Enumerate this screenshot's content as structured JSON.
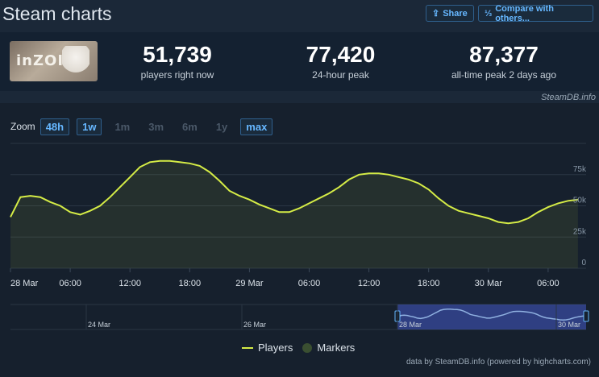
{
  "header": {
    "title": "Steam charts",
    "share_label": "Share",
    "compare_label": "Compare with others..."
  },
  "stats": {
    "logo_text": "inZOI",
    "current": {
      "value": "51,739",
      "label": "players right now"
    },
    "peak24": {
      "value": "77,420",
      "label": "24-hour peak"
    },
    "alltime": {
      "value": "87,377",
      "label": "all-time peak 2 days ago"
    }
  },
  "credit_top": "SteamDB.info",
  "zoom": {
    "label": "Zoom",
    "options": [
      "48h",
      "1w",
      "1m",
      "3m",
      "6m",
      "1y",
      "max"
    ],
    "active": [
      "48h",
      "1w",
      "max"
    ]
  },
  "chart_data": {
    "type": "line",
    "series": [
      {
        "name": "Players",
        "color": "#d5ec46",
        "x": [
          "28 Mar 00:00",
          "01:00",
          "02:00",
          "03:00",
          "04:00",
          "05:00",
          "06:00",
          "07:00",
          "08:00",
          "09:00",
          "10:00",
          "11:00",
          "12:00",
          "13:00",
          "14:00",
          "15:00",
          "16:00",
          "17:00",
          "18:00",
          "19:00",
          "20:00",
          "21:00",
          "22:00",
          "23:00",
          "29 Mar 00:00",
          "01:00",
          "02:00",
          "03:00",
          "04:00",
          "05:00",
          "06:00",
          "07:00",
          "08:00",
          "09:00",
          "10:00",
          "11:00",
          "12:00",
          "13:00",
          "14:00",
          "15:00",
          "16:00",
          "17:00",
          "18:00",
          "19:00",
          "20:00",
          "21:00",
          "22:00",
          "23:00",
          "30 Mar 00:00",
          "01:00",
          "02:00",
          "03:00",
          "04:00",
          "05:00",
          "06:00",
          "07:00",
          "08:00",
          "09:00"
        ],
        "values": [
          41000,
          57000,
          58000,
          57000,
          53000,
          50000,
          45000,
          43000,
          46000,
          50000,
          57000,
          65000,
          73000,
          81000,
          85000,
          86000,
          86000,
          85000,
          84000,
          82000,
          77000,
          70000,
          62000,
          58000,
          55000,
          51000,
          48000,
          45000,
          45000,
          48000,
          52000,
          56000,
          60000,
          65000,
          71000,
          75000,
          76000,
          76000,
          75000,
          73000,
          71000,
          68000,
          63000,
          56000,
          50000,
          46000,
          44000,
          42000,
          40000,
          37000,
          36000,
          37000,
          40000,
          45000,
          49000,
          52000,
          54000,
          55000
        ]
      }
    ],
    "x_tick_labels": [
      "28 Mar",
      "06:00",
      "12:00",
      "18:00",
      "29 Mar",
      "06:00",
      "12:00",
      "18:00",
      "30 Mar",
      "06:00"
    ],
    "y_tick_labels": [
      "0",
      "25k",
      "50k",
      "75k"
    ],
    "ylim": [
      0,
      100000
    ],
    "navigator_labels": [
      "24 Mar",
      "26 Mar",
      "28 Mar",
      "30 Mar"
    ],
    "legend": [
      {
        "name": "Players"
      },
      {
        "name": "Markers"
      }
    ],
    "legend_placement": "bottom-center",
    "grid": true
  },
  "credit_bottom": "data by SteamDB.info (powered by highcharts.com)"
}
